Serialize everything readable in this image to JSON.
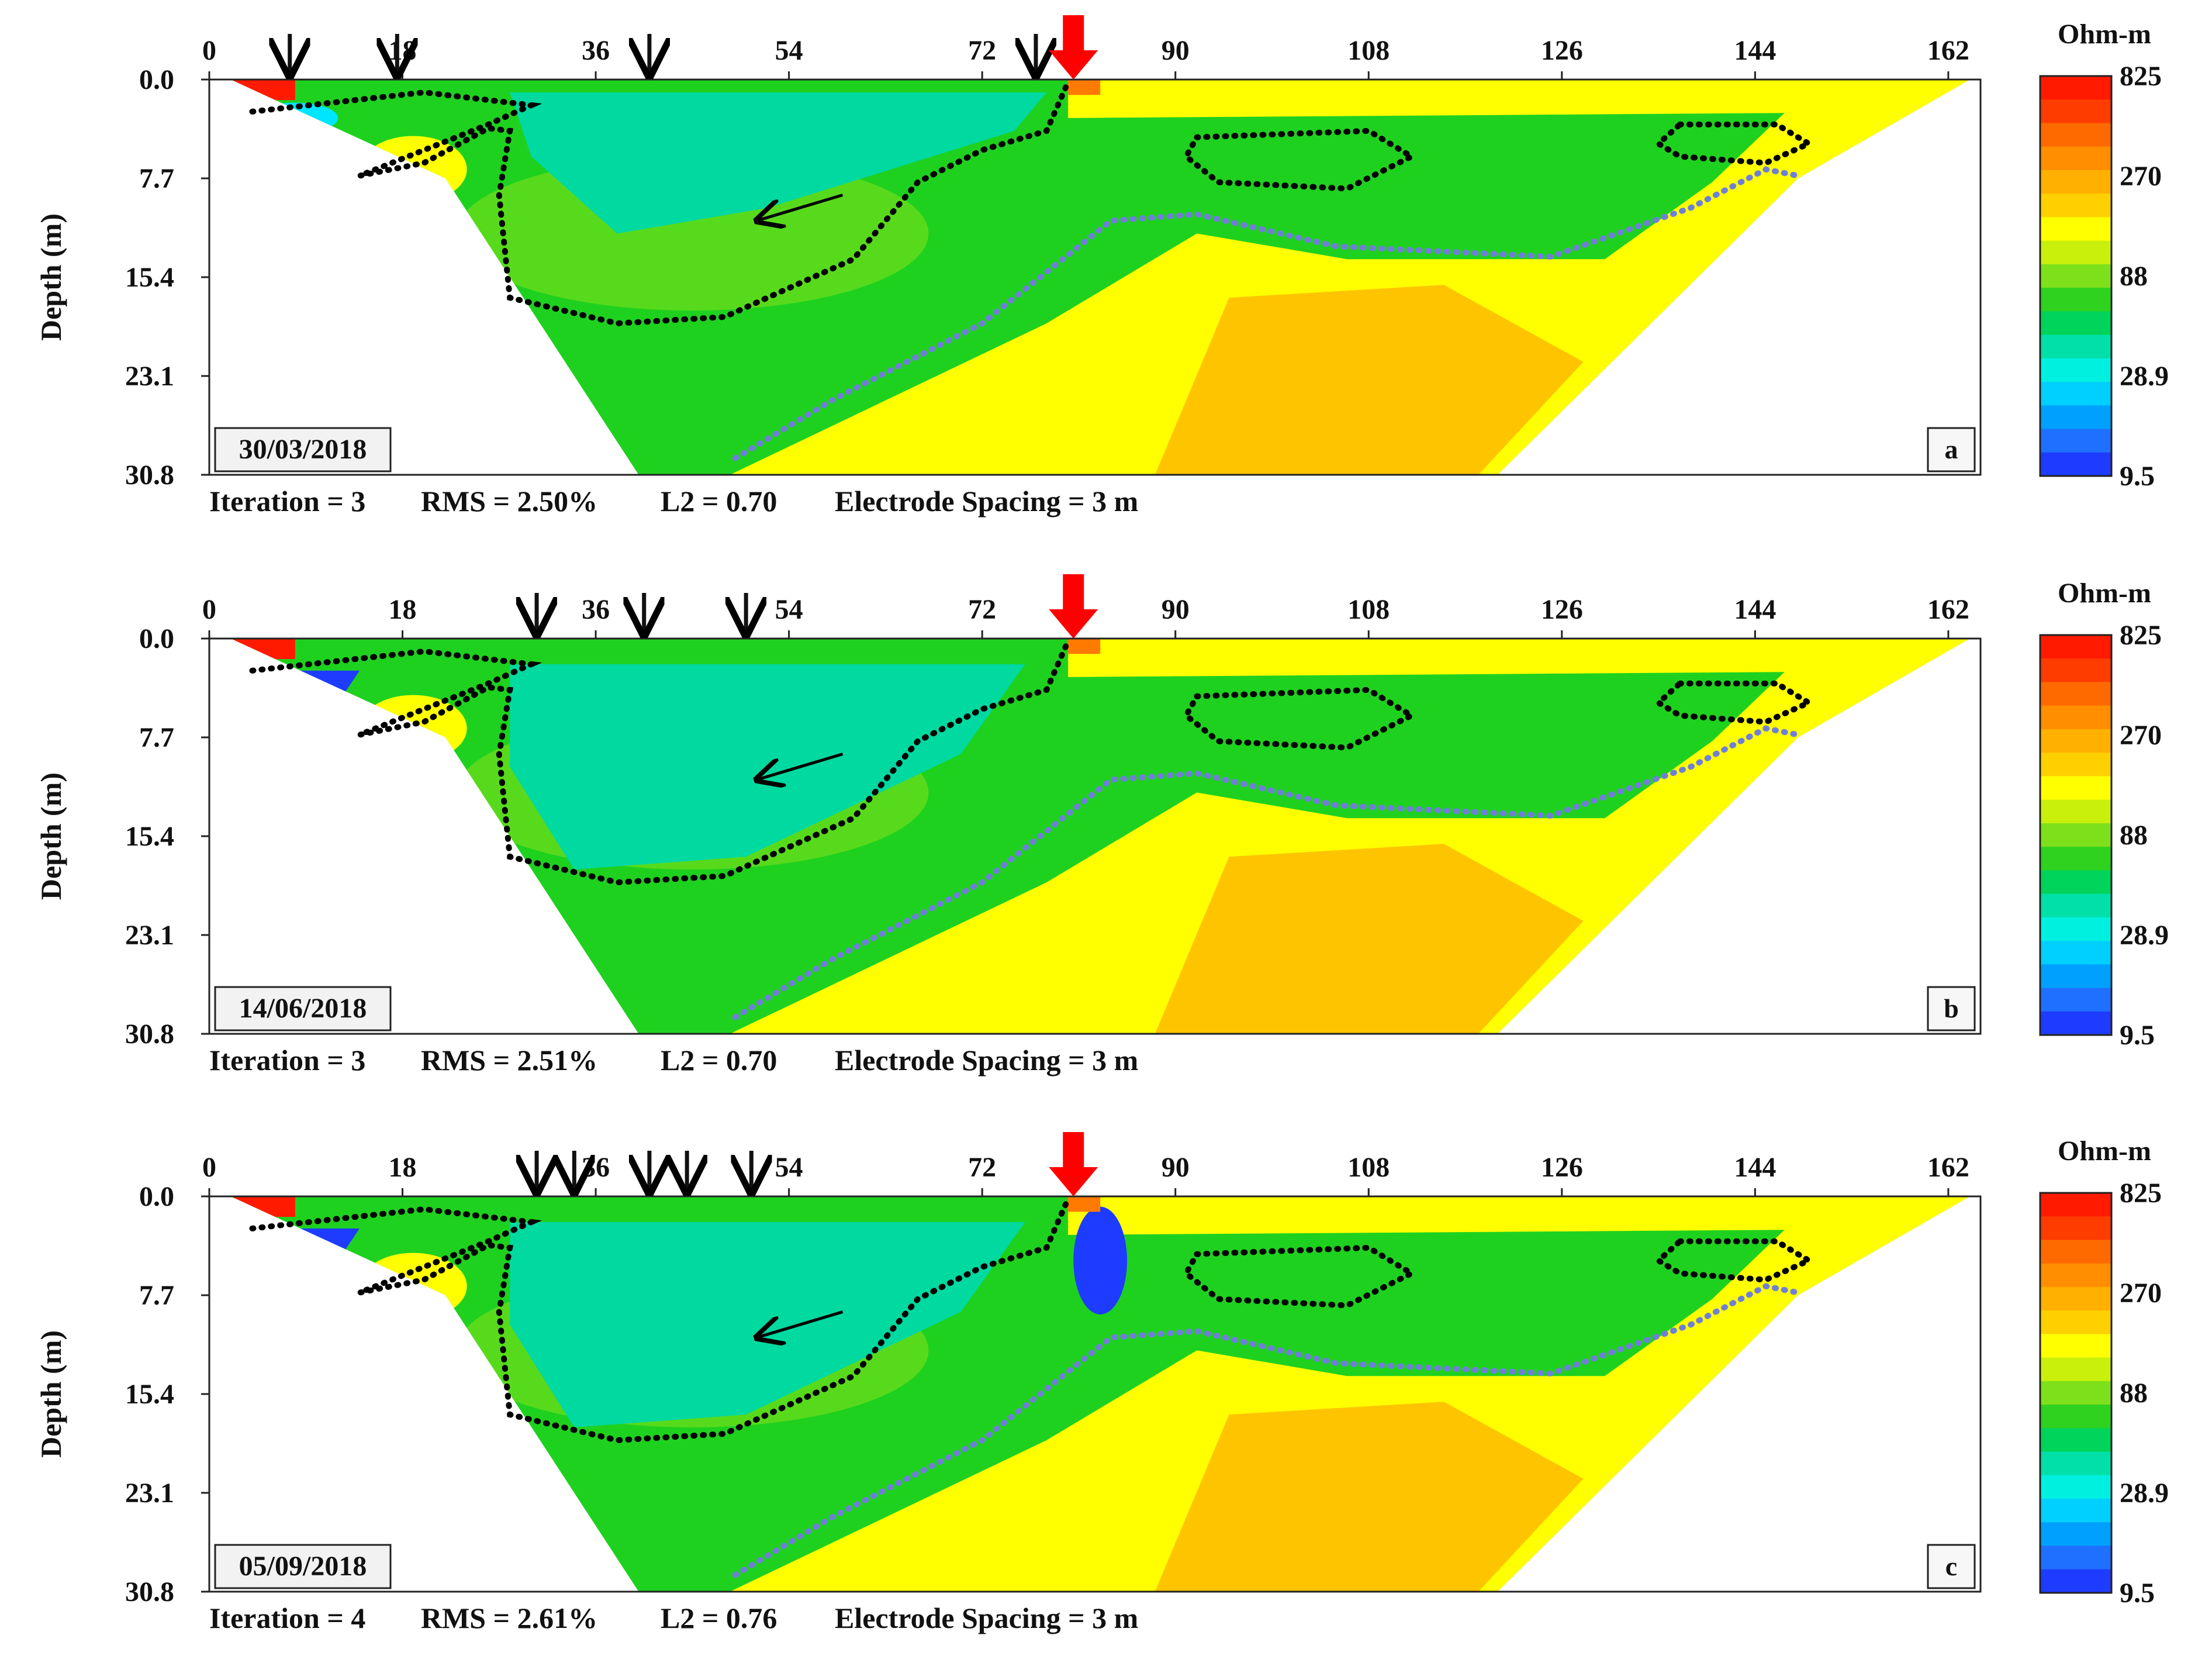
{
  "chart_data": [
    {
      "id": "a",
      "type": "heatmap",
      "panel_letter": "a",
      "date": "30/03/2018",
      "ylabel": "Depth (m)",
      "x_ticks": [
        "0",
        "18",
        "36",
        "54",
        "72",
        "90",
        "108",
        "126",
        "144",
        "162"
      ],
      "x_values": [
        0,
        18,
        36,
        54,
        72,
        90,
        108,
        126,
        144,
        162
      ],
      "xlim": [
        0,
        165
      ],
      "y_ticks": [
        "0.0",
        "7.7",
        "15.4",
        "23.1",
        "30.8"
      ],
      "y_values": [
        0.0,
        7.7,
        15.4,
        23.1,
        30.8
      ],
      "ylim": [
        0,
        30.8
      ],
      "stats": {
        "iteration": "Iteration = 3",
        "rms": "RMS = 2.50%",
        "l2": "L2 = 0.70",
        "spacing": "Electrode Spacing = 3 m"
      },
      "black_arrows_x": [
        7.5,
        17.5,
        41,
        77
      ],
      "red_arrow_x": 80.5,
      "colorbar": {
        "title": "Ohm-m",
        "labels": [
          "825",
          "270",
          "88",
          "28.9",
          "9.5"
        ]
      }
    },
    {
      "id": "b",
      "type": "heatmap",
      "panel_letter": "b",
      "date": "14/06/2018",
      "ylabel": "Depth (m)",
      "x_ticks": [
        "0",
        "18",
        "36",
        "54",
        "72",
        "90",
        "108",
        "126",
        "144",
        "162"
      ],
      "x_values": [
        0,
        18,
        36,
        54,
        72,
        90,
        108,
        126,
        144,
        162
      ],
      "xlim": [
        0,
        165
      ],
      "y_ticks": [
        "0.0",
        "7.7",
        "15.4",
        "23.1",
        "30.8"
      ],
      "y_values": [
        0.0,
        7.7,
        15.4,
        23.1,
        30.8
      ],
      "ylim": [
        0,
        30.8
      ],
      "stats": {
        "iteration": "Iteration = 3",
        "rms": "RMS = 2.51%",
        "l2": "L2 = 0.70",
        "spacing": "Electrode Spacing = 3 m"
      },
      "black_arrows_x": [
        30.5,
        40.5,
        50
      ],
      "red_arrow_x": 80.5,
      "colorbar": {
        "title": "Ohm-m",
        "labels": [
          "825",
          "270",
          "88",
          "28.9",
          "9.5"
        ]
      }
    },
    {
      "id": "c",
      "type": "heatmap",
      "panel_letter": "c",
      "date": "05/09/2018",
      "ylabel": "Depth (m)",
      "x_ticks": [
        "0",
        "18",
        "36",
        "54",
        "72",
        "90",
        "108",
        "126",
        "144",
        "162"
      ],
      "x_values": [
        0,
        18,
        36,
        54,
        72,
        90,
        108,
        126,
        144,
        162
      ],
      "xlim": [
        0,
        165
      ],
      "y_ticks": [
        "0.0",
        "7.7",
        "15.4",
        "23.1",
        "30.8"
      ],
      "y_values": [
        0.0,
        7.7,
        15.4,
        23.1,
        30.8
      ],
      "ylim": [
        0,
        30.8
      ],
      "stats": {
        "iteration": "Iteration = 4",
        "rms": "RMS = 2.61%",
        "l2": "L2 = 0.76",
        "spacing": "Electrode Spacing = 3 m"
      },
      "black_arrows_x": [
        30.5,
        34,
        41,
        44.5,
        50.5
      ],
      "red_arrow_x": 80.5,
      "colorbar": {
        "title": "Ohm-m",
        "labels": [
          "825",
          "270",
          "88",
          "28.9",
          "9.5"
        ]
      }
    }
  ],
  "colors": {
    "very_low": "#1e3cff",
    "low": "#00e5ff",
    "mid_low": "#00d9a0",
    "mid": "#1fd11f",
    "mid_high": "#7ee01a",
    "high": "#ffff00",
    "higher": "#ffc400",
    "very_high": "#ff7a00",
    "max": "#ff1a00",
    "arrow_red": "#ff0000",
    "contour_black": "#000000",
    "contour_blue": "#6f7fd8"
  },
  "colorbar_scale": [
    "#ff1a00",
    "#ff3c00",
    "#ff6a00",
    "#ff8f00",
    "#ffb000",
    "#ffd000",
    "#ffff00",
    "#c8f00a",
    "#7ee01a",
    "#2ed21f",
    "#00d45a",
    "#00e0a8",
    "#00f0e0",
    "#00d0ff",
    "#00a0ff",
    "#2070ff",
    "#1e3cff"
  ]
}
